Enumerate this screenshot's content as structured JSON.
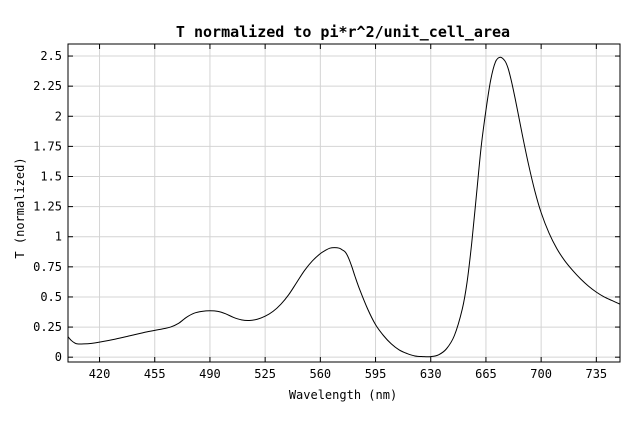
{
  "chart_data": {
    "type": "line",
    "title": "T normalized to pi*r^2/unit_cell_area",
    "xlabel": "Wavelength (nm)",
    "ylabel": "T (normalized)",
    "xlim": [
      400,
      750
    ],
    "ylim": [
      -0.04,
      2.6
    ],
    "grid": true,
    "x_ticks": [
      420,
      455,
      490,
      525,
      560,
      595,
      630,
      665,
      700,
      735
    ],
    "x_tick_labels": [
      "420",
      "455",
      "490",
      "525",
      "560",
      "595",
      "630",
      "665",
      "700",
      "735"
    ],
    "y_ticks": [
      0,
      0.25,
      0.5,
      0.75,
      1,
      1.25,
      1.5,
      1.75,
      2,
      2.25,
      2.5
    ],
    "y_tick_labels": [
      "0",
      "0.25",
      "0.5",
      "0.75",
      "1",
      "1.25",
      "1.5",
      "1.75",
      "2",
      "2.25",
      "2.5"
    ],
    "series": [
      {
        "color": "#000000",
        "x": [
          400,
          402,
          404,
          406,
          410,
          415,
          420,
          430,
          440,
          450,
          460,
          465,
          470,
          475,
          480,
          485,
          490,
          495,
          500,
          505,
          510,
          515,
          520,
          525,
          530,
          535,
          540,
          545,
          550,
          555,
          560,
          563,
          566,
          569,
          572,
          574,
          576,
          578,
          580,
          582,
          585,
          590,
          595,
          600,
          605,
          610,
          615,
          620,
          625,
          630,
          635,
          640,
          645,
          650,
          653,
          656,
          659,
          662,
          665,
          668,
          671,
          674,
          677,
          679,
          681,
          683,
          685,
          688,
          692,
          696,
          700,
          705,
          710,
          715,
          720,
          725,
          730,
          735,
          740,
          745,
          750
        ],
        "y": [
          0.17,
          0.14,
          0.12,
          0.11,
          0.11,
          0.115,
          0.125,
          0.15,
          0.18,
          0.21,
          0.235,
          0.25,
          0.28,
          0.33,
          0.365,
          0.38,
          0.385,
          0.38,
          0.36,
          0.33,
          0.31,
          0.305,
          0.315,
          0.34,
          0.38,
          0.44,
          0.52,
          0.62,
          0.72,
          0.8,
          0.86,
          0.885,
          0.905,
          0.91,
          0.905,
          0.89,
          0.87,
          0.82,
          0.75,
          0.67,
          0.56,
          0.4,
          0.27,
          0.18,
          0.11,
          0.06,
          0.03,
          0.01,
          0.005,
          0.005,
          0.02,
          0.07,
          0.18,
          0.4,
          0.62,
          0.95,
          1.35,
          1.75,
          2.05,
          2.3,
          2.45,
          2.49,
          2.46,
          2.4,
          2.3,
          2.18,
          2.05,
          1.85,
          1.6,
          1.38,
          1.2,
          1.03,
          0.9,
          0.8,
          0.72,
          0.65,
          0.59,
          0.54,
          0.5,
          0.47,
          0.44
        ]
      }
    ]
  }
}
